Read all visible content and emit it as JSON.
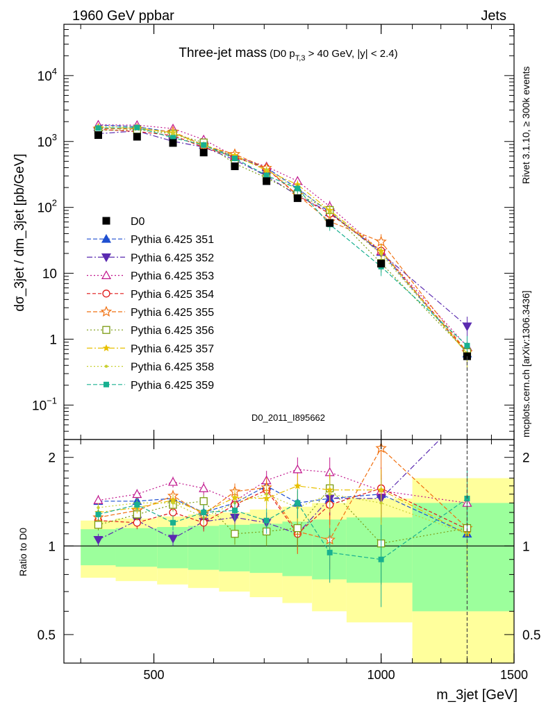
{
  "header": {
    "left": "1960 GeV ppbar",
    "right": "Jets"
  },
  "side": {
    "rivet": "Rivet 3.1.10, ≥ 300k events",
    "mcplots": "mcplots.cern.ch [arXiv:1306.3436]"
  },
  "chart_data": {
    "type": "line",
    "title_main": "Three-jet mass",
    "title_sub_prefix": "(D0 p",
    "title_sub_subscript": "T,3",
    "title_sub_suffix": " > 40 GeV, |y| < 2.4)",
    "ylabel": "dσ_3jet / dm_3jet [pb/GeV]",
    "ylabel_ratio": "Ratio to D0",
    "xlabel": "m_3jet [GeV]",
    "watermark": "D0_2011_I895662",
    "x_scale": "log",
    "y_scale": "log",
    "xlim": [
      380,
      1500
    ],
    "ylim": [
      0.03,
      60000
    ],
    "ratio_ylim": [
      0.4,
      2.3
    ],
    "x_ticks": [
      {
        "v": 500,
        "label": "500"
      },
      {
        "v": 1000,
        "label": "1000"
      },
      {
        "v": 1500,
        "label": "1500"
      }
    ],
    "y_ticks": [
      {
        "v": 10000,
        "base": "10",
        "exp": "4"
      },
      {
        "v": 1000,
        "base": "10",
        "exp": "3"
      },
      {
        "v": 100,
        "base": "10",
        "exp": "2"
      },
      {
        "v": 10,
        "base": "10",
        "exp": ""
      },
      {
        "v": 1,
        "base": "1",
        "exp": ""
      },
      {
        "v": 0.1,
        "base": "10",
        "exp": "−1"
      }
    ],
    "ratio_ticks": [
      {
        "v": 0.5,
        "label": "0.5"
      },
      {
        "v": 1,
        "label": "1"
      },
      {
        "v": 2,
        "label": "2"
      }
    ],
    "bin_edges": [
      400,
      445,
      505,
      555,
      610,
      670,
      740,
      810,
      900,
      1100,
      1500
    ],
    "data": {
      "name": "D0",
      "x": [
        422,
        475,
        530,
        582,
        640,
        705,
        775,
        855,
        1000,
        1300
      ],
      "y": [
        1250,
        1180,
        950,
        680,
        420,
        250,
        138,
        58,
        14,
        0.55
      ],
      "band_inner": [
        0.14,
        0.15,
        0.16,
        0.17,
        0.18,
        0.19,
        0.21,
        0.23,
        0.25,
        0.4
      ],
      "band_outer": [
        0.22,
        0.24,
        0.26,
        0.28,
        0.3,
        0.33,
        0.36,
        0.4,
        0.45,
        0.7
      ]
    },
    "legend_position": "center-left",
    "series": [
      {
        "name": "Pythia 6.425 351",
        "color": "#1f4fd0",
        "marker": "triangle-up",
        "dash": "6,3",
        "ratio": [
          1.42,
          1.42,
          1.45,
          1.3,
          1.4,
          1.6,
          1.4,
          1.45,
          1.5,
          1.1
        ],
        "yerr": [
          0.06,
          0.06,
          0.07,
          0.07,
          0.09,
          0.11,
          0.14,
          0.18,
          0.25,
          0.3
        ]
      },
      {
        "name": "Pythia 6.425 352",
        "color": "#5a2ab0",
        "marker": "triangle-down",
        "dash": "8,3,2,3",
        "ratio": [
          1.05,
          1.22,
          1.06,
          1.21,
          1.25,
          1.2,
          1.1,
          1.45,
          1.45,
          2.85
        ],
        "yerr": [
          0.05,
          0.06,
          0.06,
          0.07,
          0.08,
          0.1,
          0.13,
          0.18,
          0.25,
          0.4
        ]
      },
      {
        "name": "Pythia 6.425 353",
        "color": "#c0148c",
        "marker": "triangle-up-open",
        "dash": "2,3",
        "ratio": [
          1.43,
          1.5,
          1.65,
          1.57,
          1.42,
          1.67,
          1.82,
          1.78,
          1.54,
          1.4
        ],
        "yerr": [
          0.06,
          0.06,
          0.07,
          0.08,
          0.1,
          0.13,
          0.18,
          0.22,
          0.28,
          0.35
        ]
      },
      {
        "name": "Pythia 6.425 354",
        "color": "#e01818",
        "marker": "circle-open",
        "dash": "5,3",
        "ratio": [
          1.22,
          1.2,
          1.3,
          1.2,
          1.38,
          1.55,
          1.1,
          1.38,
          1.57,
          1.14
        ],
        "yerr": [
          0.05,
          0.06,
          0.07,
          0.08,
          0.1,
          0.12,
          0.16,
          0.2,
          0.28,
          0.4
        ]
      },
      {
        "name": "Pythia 6.425 355",
        "color": "#f07010",
        "marker": "star",
        "dash": "6,3",
        "ratio": [
          1.25,
          1.32,
          1.48,
          1.28,
          1.53,
          1.58,
          1.12,
          1.05,
          2.15,
          1.15
        ],
        "yerr": [
          0.05,
          0.06,
          0.07,
          0.08,
          0.1,
          0.13,
          0.18,
          0.22,
          0.3,
          0.4
        ]
      },
      {
        "name": "Pythia 6.425 356",
        "color": "#7a9a10",
        "marker": "square-open",
        "dash": "2,3",
        "ratio": [
          1.18,
          1.28,
          1.38,
          1.42,
          1.1,
          1.12,
          1.15,
          1.57,
          1.02,
          1.15
        ],
        "yerr": [
          0.05,
          0.06,
          0.07,
          0.07,
          0.09,
          0.12,
          0.16,
          0.2,
          0.28,
          0.4
        ]
      },
      {
        "name": "Pythia 6.425 357",
        "color": "#e8c000",
        "marker": "star-small",
        "dash": "8,3,2,3",
        "ratio": [
          1.3,
          1.35,
          1.43,
          1.3,
          1.46,
          1.45,
          1.6,
          1.55,
          1.55,
          1.1
        ],
        "yerr": [
          0.05,
          0.06,
          0.07,
          0.08,
          0.1,
          0.12,
          0.16,
          0.2,
          0.28,
          0.4
        ]
      },
      {
        "name": "Pythia 6.425 358",
        "color": "#c8d030",
        "marker": "dot",
        "dash": "2,3",
        "ratio": [
          1.35,
          1.4,
          1.4,
          1.25,
          1.4,
          1.5,
          1.35,
          1.5,
          1.4,
          1.1
        ],
        "yerr": [
          0.05,
          0.06,
          0.07,
          0.08,
          0.1,
          0.12,
          0.16,
          0.2,
          0.28,
          0.4
        ]
      },
      {
        "name": "Pythia 6.425 359",
        "color": "#18b090",
        "marker": "square",
        "dash": "6,3",
        "ratio": [
          1.28,
          1.38,
          1.2,
          1.3,
          1.32,
          1.22,
          1.4,
          0.95,
          0.9,
          1.45
        ],
        "yerr": [
          0.05,
          0.06,
          0.07,
          0.08,
          0.1,
          0.12,
          0.16,
          0.2,
          0.28,
          0.4
        ]
      }
    ]
  },
  "colors": {
    "band_inner": "#9cff9c",
    "band_outer": "#ffff9c",
    "data": "#000000",
    "watermark": "#888888",
    "side_text": "#888888"
  }
}
